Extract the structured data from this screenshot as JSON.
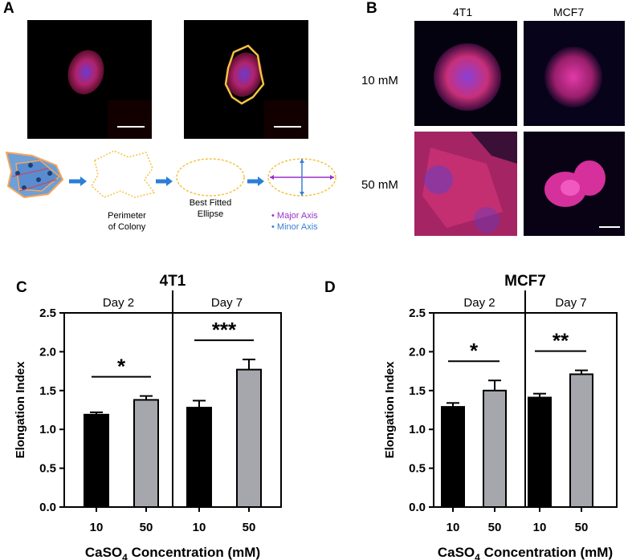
{
  "panel_a": {
    "letter": "A",
    "flow_labels": {
      "perimeter": "Perimeter\nof Colony",
      "ellipse": "Best Fitted\nEllipse"
    },
    "legend": {
      "major": "• Major Axis",
      "minor": "• Minor Axis"
    },
    "colors": {
      "major": "#9b30c8",
      "minor": "#3a7fd6",
      "arrow": "#2a7ed6",
      "outline": "#f5c242"
    }
  },
  "panel_b": {
    "letter": "B",
    "columns": [
      "4T1",
      "MCF7"
    ],
    "rows": [
      "10 mM",
      "50 mM"
    ]
  },
  "chart_data": [
    {
      "letter": "C",
      "type": "bar",
      "title": "4T1",
      "ylabel": "Elongation Index",
      "xlabel_pre": "CaSO",
      "xlabel_sub": "4",
      "xlabel_post": " Concentration (mM)",
      "ylim": [
        0,
        2.5
      ],
      "yticks": [
        "0.0",
        "0.5",
        "1.0",
        "1.5",
        "2.0",
        "2.5"
      ],
      "groups": [
        "Day 2",
        "Day 7"
      ],
      "categories": [
        "10",
        "50",
        "10",
        "50"
      ],
      "values": [
        1.19,
        1.38,
        1.28,
        1.77
      ],
      "errors": [
        0.03,
        0.05,
        0.09,
        0.13
      ],
      "bar_colors": [
        "#000000",
        "#a6a6ad",
        "#000000",
        "#a6a6ad"
      ],
      "significance": [
        "*",
        "***"
      ]
    },
    {
      "letter": "D",
      "type": "bar",
      "title": "MCF7",
      "ylabel": "Elongation Index",
      "xlabel_pre": "CaSO",
      "xlabel_sub": "4",
      "xlabel_post": " Concentration (mM)",
      "ylim": [
        0,
        2.5
      ],
      "yticks": [
        "0.0",
        "0.5",
        "1.0",
        "1.5",
        "2.0",
        "2.5"
      ],
      "groups": [
        "Day 2",
        "Day 7"
      ],
      "categories": [
        "10",
        "50",
        "10",
        "50"
      ],
      "values": [
        1.29,
        1.5,
        1.41,
        1.71
      ],
      "errors": [
        0.05,
        0.13,
        0.05,
        0.05
      ],
      "bar_colors": [
        "#000000",
        "#a6a6ad",
        "#000000",
        "#a6a6ad"
      ],
      "significance": [
        "*",
        "**"
      ]
    }
  ]
}
